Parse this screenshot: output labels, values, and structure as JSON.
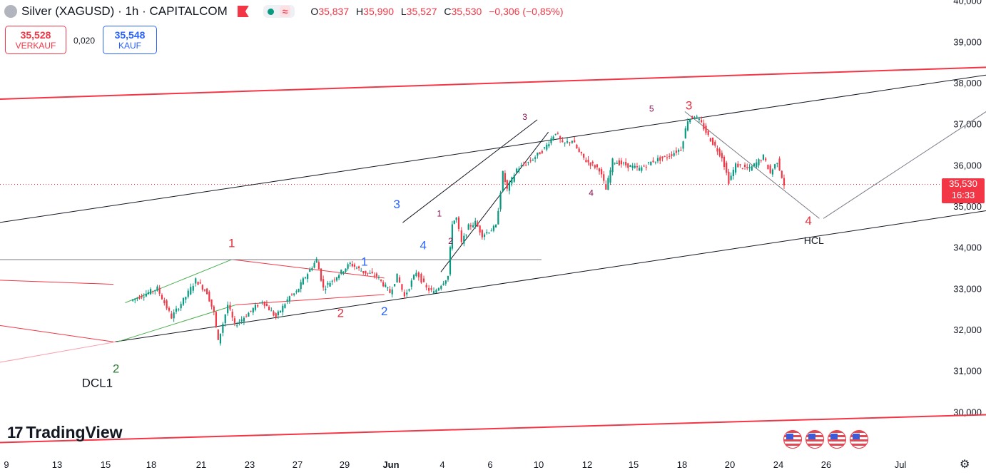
{
  "header": {
    "title": "Silver (XAGUSD) · 1h · CAPITALCOM",
    "wave_icon": "≈",
    "ohlc": [
      {
        "k": "O",
        "v": "35,837"
      },
      {
        "k": "H",
        "v": "35,990"
      },
      {
        "k": "L",
        "v": "35,527"
      },
      {
        "k": "C",
        "v": "35,530"
      }
    ],
    "change": "−0,306 (−0,85%)"
  },
  "trade": {
    "sell_price": "35,528",
    "sell_label": "VERKAUF",
    "spread": "0,020",
    "buy_price": "35,548",
    "buy_label": "KAUF"
  },
  "price_tag": {
    "price": "35,530",
    "countdown": "16:33"
  },
  "logo": {
    "mark": "17",
    "text": "TradingView"
  },
  "colors": {
    "up": "#089981",
    "down": "#f23645",
    "channel": "#f23645",
    "trend": "#131722",
    "wave_red": "#e0313d",
    "wave_blue": "#2962ff",
    "wave_green": "#2e7d32",
    "wave_maroon": "#880e4f"
  },
  "icons": [
    "symbol-icon",
    "flag-icon",
    "live-dot-icon",
    "wave-icon",
    "us-flag-icon",
    "gear-icon"
  ],
  "chart_data": {
    "type": "candlestick",
    "title": "Silver (XAGUSD) · 1h · CAPITALCOM",
    "y_axis": {
      "side": "right",
      "ticks": [
        "30,000",
        "31,000",
        "32,000",
        "33,000",
        "34,000",
        "35,000",
        "36,000",
        "37,000",
        "38,000",
        "39,000",
        "40,000"
      ],
      "ylim": [
        29200,
        40000
      ]
    },
    "x_axis": {
      "ticks": [
        "9",
        "13",
        "15",
        "18",
        "21",
        "23",
        "27",
        "29",
        "Jun",
        "4",
        "6",
        "10",
        "12",
        "15",
        "18",
        "20",
        "24",
        "26",
        "Jul"
      ]
    },
    "last_price": 35530,
    "price_path": [
      [
        9,
        32700
      ],
      [
        11,
        33000
      ],
      [
        12,
        32300
      ],
      [
        13,
        32800
      ],
      [
        13.7,
        33200
      ],
      [
        14.5,
        32900
      ],
      [
        15,
        32400
      ],
      [
        15.3,
        31700
      ],
      [
        16,
        32600
      ],
      [
        16.5,
        32100
      ],
      [
        17.5,
        32400
      ],
      [
        18.5,
        32700
      ],
      [
        19.5,
        32300
      ],
      [
        20.5,
        32800
      ],
      [
        21,
        32900
      ],
      [
        21.5,
        33200
      ],
      [
        22.5,
        33700
      ],
      [
        23,
        33000
      ],
      [
        24,
        33300
      ],
      [
        25,
        33600
      ],
      [
        26,
        33400
      ],
      [
        27,
        33300
      ],
      [
        28,
        32900
      ],
      [
        28.5,
        33300
      ],
      [
        29,
        32800
      ],
      [
        29.8,
        33400
      ],
      [
        30.5,
        33000
      ],
      [
        31,
        32900
      ],
      [
        31.5,
        33100
      ],
      [
        32,
        33300
      ],
      [
        32.3,
        34600
      ],
      [
        32.6,
        34700
      ],
      [
        33,
        34100
      ],
      [
        33.5,
        34500
      ],
      [
        34,
        34600
      ],
      [
        34.5,
        34300
      ],
      [
        35.5,
        34500
      ],
      [
        36,
        35800
      ],
      [
        36.3,
        35400
      ],
      [
        37,
        35900
      ],
      [
        38,
        36100
      ],
      [
        39,
        36400
      ],
      [
        39.8,
        36800
      ],
      [
        40.3,
        36500
      ],
      [
        41,
        36600
      ],
      [
        41.5,
        36300
      ],
      [
        42,
        36100
      ],
      [
        43,
        35900
      ],
      [
        43.5,
        35400
      ],
      [
        44,
        36100
      ],
      [
        45,
        36000
      ],
      [
        46,
        35900
      ],
      [
        47,
        36100
      ],
      [
        48,
        36200
      ],
      [
        49,
        36400
      ],
      [
        49.5,
        37100
      ],
      [
        50,
        37200
      ],
      [
        50.5,
        37000
      ],
      [
        51,
        36700
      ],
      [
        52,
        36200
      ],
      [
        52.5,
        35600
      ],
      [
        53,
        36000
      ],
      [
        54,
        35900
      ],
      [
        55,
        36200
      ],
      [
        55.5,
        35800
      ],
      [
        56,
        36100
      ],
      [
        56.5,
        35530
      ]
    ],
    "trendlines": [
      {
        "kind": "channel-upper",
        "color": "red",
        "from": [
          -0.5,
          37600
        ],
        "to": [
          68.5,
          38400
        ]
      },
      {
        "kind": "channel-lower",
        "color": "red",
        "from": [
          -0.5,
          29250
        ],
        "to": [
          68.5,
          29950
        ]
      },
      {
        "kind": "trend-upper",
        "color": "black",
        "from": [
          -0.5,
          34600
        ],
        "to": [
          68.5,
          38300
        ]
      },
      {
        "kind": "trend-lower",
        "color": "black",
        "from": [
          7.7,
          31700
        ],
        "to": [
          68.5,
          35000
        ]
      },
      {
        "kind": "wedge-upper",
        "color": "red",
        "from": [
          -0.5,
          33200
        ],
        "to": [
          7.6,
          33100
        ]
      },
      {
        "kind": "wedge-lower",
        "color": "red",
        "from": [
          -0.5,
          32100
        ],
        "to": [
          7.6,
          31700
        ]
      },
      {
        "kind": "wedge-lower-pink",
        "color": "pink",
        "from": [
          -0.5,
          31200
        ],
        "to": [
          7.8,
          31700
        ]
      },
      {
        "kind": "green-channel-upper",
        "color": "green",
        "from": [
          8.5,
          32650
        ],
        "to": [
          16.2,
          33700
        ]
      },
      {
        "kind": "green-channel-lower",
        "color": "green",
        "from": [
          7.9,
          31700
        ],
        "to": [
          16.5,
          32600
        ]
      },
      {
        "kind": "triangle-upper",
        "color": "red",
        "from": [
          16.3,
          33700
        ],
        "to": [
          27.5,
          33250
        ]
      },
      {
        "kind": "triangle-lower",
        "color": "red",
        "from": [
          16.5,
          32600
        ],
        "to": [
          27.5,
          32850
        ]
      },
      {
        "kind": "horizontal",
        "color": "gray",
        "from": [
          -0.5,
          33700
        ],
        "to": [
          38.7,
          33700
        ]
      },
      {
        "kind": "rising-wedge-upper",
        "color": "black",
        "from": [
          28.8,
          34600
        ],
        "to": [
          38.4,
          37100
        ]
      },
      {
        "kind": "rising-wedge-lower",
        "color": "black",
        "from": [
          31.4,
          33400
        ],
        "to": [
          39.2,
          36800
        ]
      },
      {
        "kind": "projection-down",
        "color": "gray",
        "from": [
          49.2,
          37300
        ],
        "to": [
          59,
          34700
        ]
      },
      {
        "kind": "projection-up",
        "color": "gray",
        "from": [
          59.3,
          34700
        ],
        "to": [
          67.2,
          37350
        ]
      }
    ],
    "wave_labels": [
      {
        "text": "2",
        "color": "green",
        "x": 7.8,
        "y": 30950
      },
      {
        "text": "DCL1",
        "color": "black",
        "x": 6.4,
        "y": 30600
      },
      {
        "text": "1",
        "color": "red",
        "x": 16.2,
        "y": 34000
      },
      {
        "text": "2",
        "color": "red",
        "x": 24.2,
        "y": 32300
      },
      {
        "text": "1",
        "color": "blue",
        "x": 26.0,
        "y": 33550
      },
      {
        "text": "2",
        "color": "blue",
        "x": 27.5,
        "y": 32350
      },
      {
        "text": "3",
        "color": "blue",
        "x": 28.4,
        "y": 34950
      },
      {
        "text": "4",
        "color": "blue",
        "x": 30.2,
        "y": 33950
      },
      {
        "text": "1",
        "color": "maroon",
        "x": 31.3,
        "y": 34750
      },
      {
        "text": "2",
        "color": "maroon",
        "x": 32.1,
        "y": 34080
      },
      {
        "text": "3",
        "color": "maroon",
        "x": 37.5,
        "y": 37100
      },
      {
        "text": "4",
        "color": "maroon",
        "x": 42.3,
        "y": 35250
      },
      {
        "text": "5",
        "color": "maroon",
        "x": 46.8,
        "y": 37300
      },
      {
        "text": "3",
        "color": "red",
        "x": 49.5,
        "y": 37350
      },
      {
        "text": "4",
        "color": "red",
        "x": 58.2,
        "y": 34550
      },
      {
        "text": "HCL",
        "color": "black",
        "x": 58.6,
        "y": 34080
      }
    ]
  }
}
